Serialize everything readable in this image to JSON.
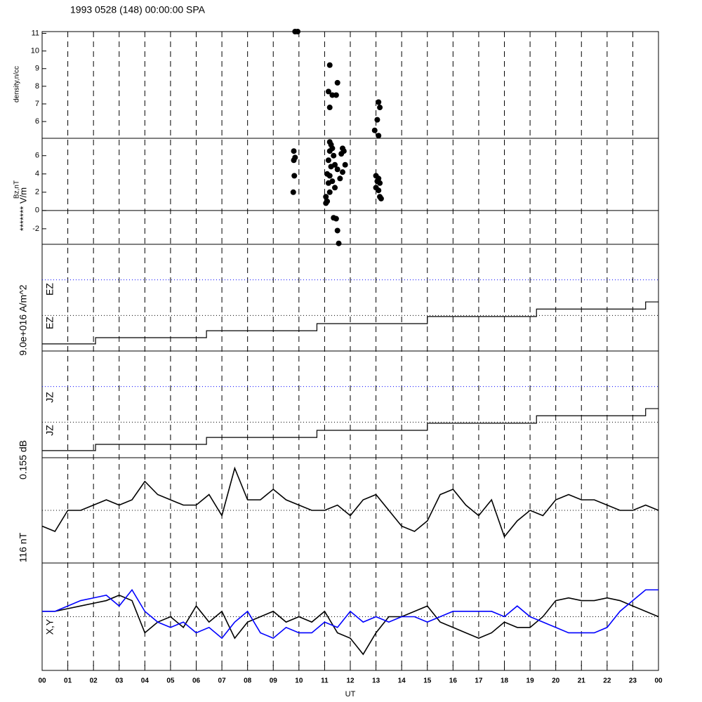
{
  "chart_data": [
    {
      "type": "scatter",
      "title": "1993 0528 (148) 00:00:00 SPA",
      "ylabels": [
        "density,n/cc"
      ],
      "color": "#000000",
      "x": [
        9.85,
        9.95,
        11.2,
        11.15,
        11.3,
        11.45,
        11.5,
        11.2,
        13.1,
        13.15,
        13.05,
        12.95,
        13.1
      ],
      "values": [
        11.1,
        11.1,
        9.2,
        7.7,
        7.5,
        7.5,
        8.2,
        6.8,
        7.1,
        6.8,
        6.1,
        5.5,
        5.2
      ],
      "xlim": [
        0,
        24
      ],
      "ylim": [
        5.05,
        11.1
      ],
      "yticks": [
        6,
        7,
        8,
        9,
        10,
        11
      ]
    },
    {
      "type": "scatter",
      "ylabels": [
        "Bz,nT",
        "******* V/m"
      ],
      "color": "#000000",
      "x": [
        9.8,
        9.85,
        9.8,
        9.82,
        9.78,
        11.2,
        11.25,
        11.3,
        11.2,
        11.35,
        11.15,
        11.4,
        11.25,
        11.5,
        11.1,
        11.2,
        11.3,
        11.15,
        11.4,
        11.2,
        11.05,
        11.1,
        11.05,
        11.35,
        11.45,
        11.5,
        11.55,
        11.7,
        11.75,
        11.65,
        11.8,
        11.7,
        11.6,
        13.0,
        13.1,
        13.05,
        13.15,
        13.0,
        13.1,
        13.15,
        13.2
      ],
      "values": [
        6.5,
        5.8,
        5.5,
        3.8,
        2.0,
        7.5,
        7.2,
        6.8,
        6.5,
        6.0,
        5.5,
        5.0,
        4.8,
        4.5,
        4.0,
        3.8,
        3.2,
        3.0,
        2.5,
        2.0,
        1.5,
        1.0,
        0.8,
        -0.8,
        -0.9,
        -2.2,
        -3.6,
        6.8,
        6.5,
        6.2,
        5.0,
        4.2,
        3.5,
        3.8,
        3.5,
        3.2,
        3.0,
        2.5,
        2.2,
        1.5,
        1.3
      ],
      "xlim": [
        0,
        24
      ],
      "ylim": [
        -3.7,
        7.9
      ],
      "yticks": [
        -2,
        0,
        2,
        4,
        6
      ],
      "zero_line": true
    },
    {
      "type": "step",
      "ylabels": [
        "EZ",
        "EZ",
        "9.0e+016 A/m^2"
      ],
      "color": "#000000",
      "x": [
        0,
        2.08,
        6.4,
        10.7,
        15,
        19.25,
        23.5
      ],
      "values": [
        0.2,
        0.375,
        0.57,
        0.77,
        0.97,
        1.18,
        1.38
      ],
      "xlim": [
        0,
        24
      ],
      "ylim": [
        0,
        3
      ],
      "hlines": [
        {
          "value": 1,
          "color": "#000000"
        },
        {
          "value": 2,
          "color": "#0000ff"
        }
      ]
    },
    {
      "type": "step",
      "ylabels": [
        "JZ",
        "JZ",
        "0.155 dB"
      ],
      "color": "#000000",
      "x": [
        0,
        2.08,
        6.4,
        10.7,
        15,
        19.25,
        23.5
      ],
      "values": [
        0.2,
        0.375,
        0.57,
        0.77,
        0.97,
        1.18,
        1.38
      ],
      "xlim": [
        0,
        24
      ],
      "ylim": [
        0,
        3
      ],
      "hlines": [
        {
          "value": 1,
          "color": "#000000"
        },
        {
          "value": 2,
          "color": "#0000ff"
        }
      ]
    },
    {
      "type": "line",
      "ylabels": [
        "116 nT"
      ],
      "x": [
        0,
        0.5,
        1,
        1.5,
        2,
        2.5,
        3,
        3.5,
        4,
        4.5,
        5,
        5.5,
        6,
        6.5,
        7,
        7.5,
        8,
        8.5,
        9,
        9.5,
        10,
        10.5,
        11,
        11.5,
        12,
        12.5,
        13,
        13.5,
        14,
        14.5,
        15,
        15.5,
        16,
        16.5,
        17,
        17.5,
        18,
        18.5,
        19,
        19.5,
        20,
        20.5,
        21,
        21.5,
        22,
        22.5,
        23,
        23.5,
        24
      ],
      "series": [
        {
          "color": "#000000",
          "values": [
            -0.3,
            -0.4,
            0.0,
            0.0,
            0.1,
            0.2,
            0.1,
            0.2,
            0.55,
            0.3,
            0.2,
            0.1,
            0.1,
            0.3,
            -0.1,
            0.8,
            0.2,
            0.2,
            0.4,
            0.2,
            0.1,
            0.0,
            0.0,
            0.1,
            -0.1,
            0.2,
            0.3,
            0.0,
            -0.3,
            -0.4,
            -0.2,
            0.3,
            0.4,
            0.1,
            -0.1,
            0.2,
            -0.5,
            -0.2,
            0.0,
            -0.1,
            0.2,
            0.3,
            0.2,
            0.2,
            0.1,
            0.0,
            0.0,
            0.1,
            0.0
          ]
        }
      ],
      "xlim": [
        0,
        24
      ],
      "ylim": [
        -1,
        1
      ],
      "hlines": [
        {
          "value": 0,
          "color": "#000000"
        }
      ]
    },
    {
      "type": "line",
      "ylabels": [
        "X,Y"
      ],
      "xlabel": "UT",
      "x": [
        0,
        0.5,
        1,
        1.5,
        2,
        2.5,
        3,
        3.5,
        4,
        4.5,
        5,
        5.5,
        6,
        6.5,
        7,
        7.5,
        8,
        8.5,
        9,
        9.5,
        10,
        10.5,
        11,
        11.5,
        12,
        12.5,
        13,
        13.5,
        14,
        14.5,
        15,
        15.5,
        16,
        16.5,
        17,
        17.5,
        18,
        18.5,
        19,
        19.5,
        20,
        20.5,
        21,
        21.5,
        22,
        22.5,
        23,
        23.5,
        24
      ],
      "series": [
        {
          "color": "#000000",
          "values": [
            0.1,
            0.1,
            0.15,
            0.2,
            0.25,
            0.3,
            0.4,
            0.3,
            -0.3,
            -0.1,
            0.0,
            -0.2,
            0.2,
            -0.1,
            0.1,
            -0.4,
            -0.1,
            0.0,
            0.1,
            -0.1,
            0.0,
            -0.1,
            0.1,
            -0.3,
            -0.4,
            -0.7,
            -0.3,
            0.0,
            0.0,
            0.1,
            0.2,
            -0.1,
            -0.2,
            -0.3,
            -0.4,
            -0.3,
            -0.1,
            -0.2,
            -0.2,
            0.0,
            0.3,
            0.35,
            0.3,
            0.3,
            0.35,
            0.3,
            0.2,
            0.1,
            0.0
          ]
        },
        {
          "color": "#0000ff",
          "values": [
            0.1,
            0.1,
            0.2,
            0.3,
            0.35,
            0.4,
            0.2,
            0.5,
            0.1,
            -0.1,
            -0.2,
            -0.1,
            -0.3,
            -0.2,
            -0.4,
            -0.1,
            0.1,
            -0.3,
            -0.4,
            -0.2,
            -0.3,
            -0.3,
            -0.1,
            -0.2,
            0.1,
            -0.1,
            0.0,
            -0.1,
            0.0,
            0.0,
            -0.1,
            0.0,
            0.1,
            0.1,
            0.1,
            0.1,
            0.0,
            0.2,
            0.0,
            -0.1,
            -0.2,
            -0.3,
            -0.3,
            -0.3,
            -0.2,
            0.1,
            0.3,
            0.5,
            0.5
          ]
        }
      ],
      "xlim": [
        0,
        24
      ],
      "ylim": [
        -1,
        1
      ],
      "hlines": [
        {
          "value": 0,
          "color": "#000000"
        }
      ],
      "xticks": [
        {
          "value": 0,
          "label": "00"
        },
        {
          "value": 1,
          "label": "01"
        },
        {
          "value": 2,
          "label": "02"
        },
        {
          "value": 3,
          "label": "03"
        },
        {
          "value": 4,
          "label": "04"
        },
        {
          "value": 5,
          "label": "05"
        },
        {
          "value": 6,
          "label": "06"
        },
        {
          "value": 7,
          "label": "07"
        },
        {
          "value": 8,
          "label": "08"
        },
        {
          "value": 9,
          "label": "09"
        },
        10,
        11,
        12,
        13,
        14,
        15,
        16,
        17,
        18,
        19,
        20,
        21,
        22,
        23,
        {
          "value": 24,
          "label": "00"
        }
      ]
    }
  ]
}
